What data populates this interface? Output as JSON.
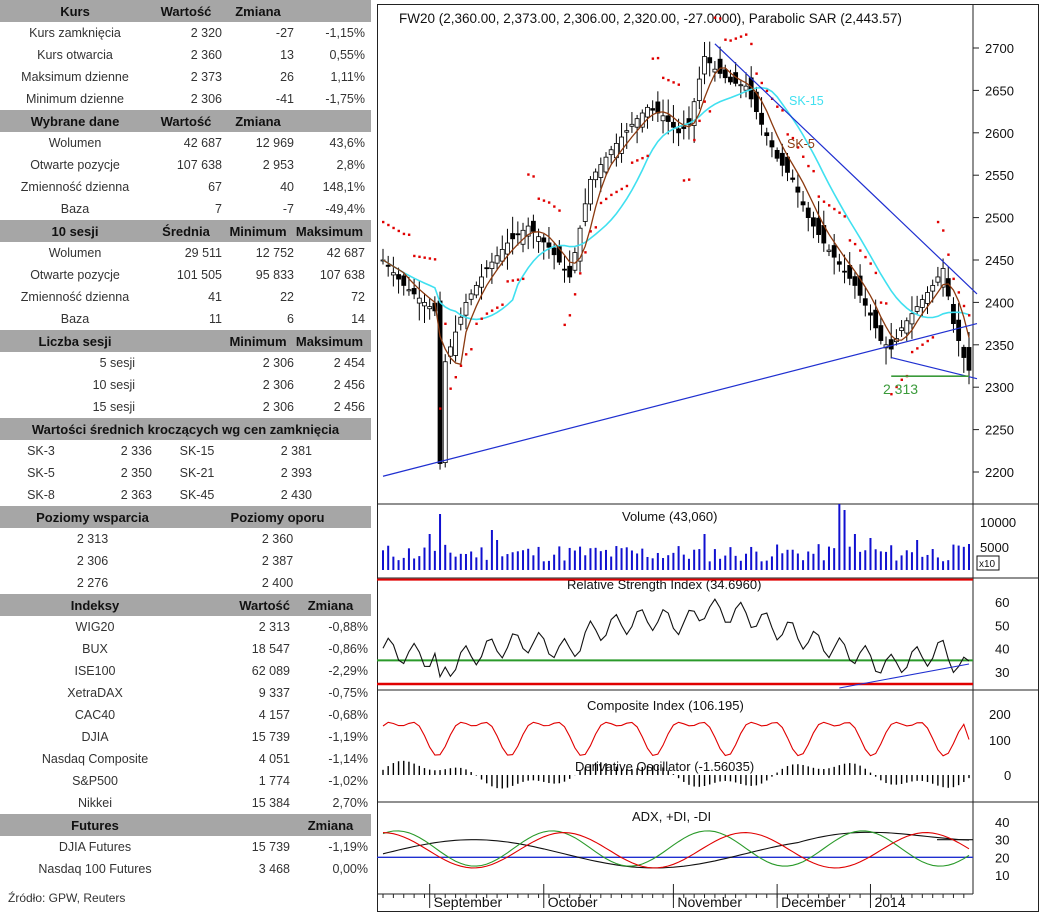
{
  "left_panel": {
    "kurs": {
      "header": [
        "Kurs",
        "Wartość",
        "Zmiana",
        ""
      ],
      "rows": [
        [
          "Kurs zamknięcia",
          "2 320",
          "-27",
          "-1,15%"
        ],
        [
          "Kurs otwarcia",
          "2 360",
          "13",
          "0,55%"
        ],
        [
          "Maksimum dzienne",
          "2 373",
          "26",
          "1,11%"
        ],
        [
          "Minimum dzienne",
          "2 306",
          "-41",
          "-1,75%"
        ]
      ]
    },
    "wybrane": {
      "header": [
        "Wybrane dane",
        "Wartość",
        "Zmiana",
        ""
      ],
      "rows": [
        [
          "Wolumen",
          "42 687",
          "12 969",
          "43,6%"
        ],
        [
          "Otwarte pozycje",
          "107 638",
          "2 953",
          "2,8%"
        ],
        [
          "Zmienność dzienna",
          "67",
          "40",
          "148,1%"
        ],
        [
          "Baza",
          "7",
          "-7",
          "-49,4%"
        ]
      ]
    },
    "sesji10": {
      "header": [
        "10 sesji",
        "Średnia",
        "Minimum",
        "Maksimum"
      ],
      "rows": [
        [
          "Wolumen",
          "29 511",
          "12 752",
          "42 687"
        ],
        [
          "Otwarte pozycje",
          "101 505",
          "95 833",
          "107 638"
        ],
        [
          "Zmienność dzienna",
          "41",
          "22",
          "72"
        ],
        [
          "Baza",
          "11",
          "6",
          "14"
        ]
      ]
    },
    "liczba": {
      "header": [
        "Liczba sesji",
        "",
        "Minimum",
        "Maksimum"
      ],
      "rows": [
        [
          "5 sesji",
          "",
          "2 306",
          "2 454"
        ],
        [
          "10 sesji",
          "",
          "2 306",
          "2 456"
        ],
        [
          "15 sesji",
          "",
          "2 306",
          "2 456"
        ]
      ]
    },
    "ma": {
      "header": "Wartości średnich kroczących wg cen zamknięcia",
      "rows": [
        [
          "SK-3",
          "2 336",
          "SK-15",
          "2 381"
        ],
        [
          "SK-5",
          "2 350",
          "SK-21",
          "2 393"
        ],
        [
          "SK-8",
          "2 363",
          "SK-45",
          "2 430"
        ]
      ]
    },
    "levels": {
      "header": [
        "Poziomy wsparcia",
        "Poziomy oporu"
      ],
      "rows": [
        [
          "2 313",
          "2 360"
        ],
        [
          "2 306",
          "2 387"
        ],
        [
          "2 276",
          "2 400"
        ]
      ]
    },
    "indeksy": {
      "header": [
        "Indeksy",
        "Wartość",
        "Zmiana"
      ],
      "rows": [
        [
          "WIG20",
          "2 313",
          "-0,88%"
        ],
        [
          "BUX",
          "18 547",
          "-0,86%"
        ],
        [
          "ISE100",
          "62 089",
          "-2,29%"
        ],
        [
          "XetraDAX",
          "9 337",
          "-0,75%"
        ],
        [
          "CAC40",
          "4 157",
          "-0,68%"
        ],
        [
          "DJIA",
          "15 739",
          "-1,19%"
        ],
        [
          "Nasdaq Composite",
          "4 051",
          "-1,14%"
        ],
        [
          "S&P500",
          "1 774",
          "-1,02%"
        ],
        [
          "Nikkei",
          "15 384",
          "2,70%"
        ]
      ]
    },
    "futures": {
      "header": [
        "Futures",
        "",
        "Zmiana"
      ],
      "rows": [
        [
          "DJIA Futures",
          "15 739",
          "-1,19%"
        ],
        [
          "Nasdaq 100 Futures",
          "3 468",
          "0,00%"
        ]
      ]
    },
    "source": "Źródło: GPW, Reuters"
  },
  "chart_data": {
    "type": "candlestick",
    "title": "FW20 (2,360.00, 2,373.00, 2,306.00, 2,320.00, -27.0000), Parabolic SAR (2,443.57)",
    "price_ticks": [
      2700,
      2650,
      2600,
      2550,
      2500,
      2450,
      2400,
      2350,
      2300,
      2250,
      2200
    ],
    "price_range": [
      2165,
      2730
    ],
    "x_labels": [
      "September",
      "October",
      "November",
      "December",
      "2014"
    ],
    "x_label_positions": [
      9,
      31,
      56,
      76,
      94
    ],
    "n_sessions": 114,
    "price_anchors": [
      [
        0,
        2450
      ],
      [
        4,
        2420
      ],
      [
        8,
        2400
      ],
      [
        10,
        2390
      ],
      [
        11,
        2210
      ],
      [
        12,
        2330
      ],
      [
        16,
        2400
      ],
      [
        20,
        2440
      ],
      [
        24,
        2470
      ],
      [
        28,
        2490
      ],
      [
        32,
        2465
      ],
      [
        36,
        2430
      ],
      [
        40,
        2545
      ],
      [
        44,
        2580
      ],
      [
        48,
        2610
      ],
      [
        51,
        2630
      ],
      [
        54,
        2620
      ],
      [
        57,
        2600
      ],
      [
        59,
        2610
      ],
      [
        62,
        2690
      ],
      [
        64,
        2675
      ],
      [
        67,
        2660
      ],
      [
        70,
        2655
      ],
      [
        73,
        2610
      ],
      [
        76,
        2570
      ],
      [
        79,
        2545
      ],
      [
        82,
        2500
      ],
      [
        85,
        2470
      ],
      [
        88,
        2445
      ],
      [
        91,
        2420
      ],
      [
        94,
        2385
      ],
      [
        96,
        2355
      ],
      [
        98,
        2345
      ],
      [
        100,
        2370
      ],
      [
        103,
        2395
      ],
      [
        106,
        2420
      ],
      [
        108,
        2440
      ],
      [
        110,
        2375
      ],
      [
        112,
        2335
      ],
      [
        113,
        2320
      ]
    ],
    "labels": {
      "sk15": "SK-15",
      "sk5": "SK-5",
      "support": "2 313"
    },
    "support_level": 2313,
    "trendline_up": [
      [
        0,
        2195
      ],
      [
        113,
        2375
      ]
    ],
    "trendline_down": [
      [
        64,
        2705
      ],
      [
        113,
        2410
      ]
    ],
    "trendline_short": [
      [
        98,
        2335
      ],
      [
        113,
        2310
      ]
    ],
    "volume": {
      "label": "Volume (43,060)",
      "ticks": [
        "10000",
        "5000"
      ],
      "unit_tag": "x10"
    },
    "rsi": {
      "label": "Relative Strength Index (34.6960)",
      "ticks": [
        60,
        50,
        40,
        30
      ],
      "levels": [
        70,
        35,
        15
      ],
      "value": 34.696
    },
    "composite": {
      "label": "Composite Index (106.195)",
      "ticks": [
        200,
        100,
        0
      ],
      "osc_label": "Derivative Oscillator (-1.56035)"
    },
    "adx": {
      "label": "ADX, +DI, -DI",
      "ticks": [
        40,
        30,
        20,
        10
      ]
    },
    "colors": {
      "up": "#ffffff",
      "down": "#000000",
      "sma15": "#40e0f0",
      "sma5": "#8b3a10",
      "sar": "#e00000",
      "trend": "#1f2fd0",
      "support": "#3a9a3a",
      "volume": "#1010d0"
    }
  }
}
